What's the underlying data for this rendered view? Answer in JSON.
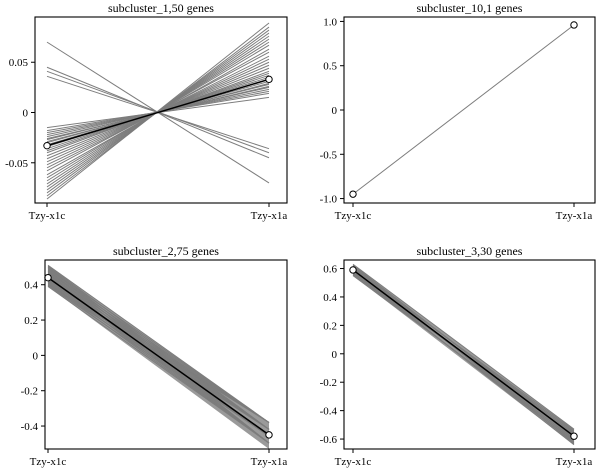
{
  "chart_data": [
    {
      "type": "line",
      "title": "subcluster_1,50 genes",
      "categories": [
        "Tzy-x1c",
        "Tzy-x1a"
      ],
      "ylim": [
        -0.09,
        0.095
      ],
      "yticks": [
        -0.05,
        0,
        0.05
      ],
      "ytick_labels": [
        "-0.05",
        "0",
        "0.05"
      ],
      "gene_lines": [
        {
          "start": 0.07,
          "end": -0.07
        },
        {
          "start": 0.045,
          "end": -0.045
        },
        {
          "start": 0.041,
          "end": -0.04
        },
        {
          "start": 0.036,
          "end": -0.036
        },
        {
          "start": -0.015,
          "end": 0.015
        },
        {
          "start": -0.018,
          "end": 0.019
        },
        {
          "start": -0.02,
          "end": 0.021
        },
        {
          "start": -0.022,
          "end": 0.023
        },
        {
          "start": -0.024,
          "end": 0.025
        },
        {
          "start": -0.026,
          "end": 0.026
        },
        {
          "start": -0.027,
          "end": 0.028
        },
        {
          "start": -0.029,
          "end": 0.029
        },
        {
          "start": -0.03,
          "end": 0.031
        },
        {
          "start": -0.032,
          "end": 0.033
        },
        {
          "start": -0.034,
          "end": 0.035
        },
        {
          "start": -0.036,
          "end": 0.037
        },
        {
          "start": -0.038,
          "end": 0.039
        },
        {
          "start": -0.04,
          "end": 0.041
        },
        {
          "start": -0.043,
          "end": 0.044
        },
        {
          "start": -0.046,
          "end": 0.047
        },
        {
          "start": -0.049,
          "end": 0.05
        },
        {
          "start": -0.052,
          "end": 0.053
        },
        {
          "start": -0.055,
          "end": 0.056
        },
        {
          "start": -0.058,
          "end": 0.06
        },
        {
          "start": -0.062,
          "end": 0.063
        },
        {
          "start": -0.065,
          "end": 0.067
        },
        {
          "start": -0.068,
          "end": 0.07
        },
        {
          "start": -0.071,
          "end": 0.073
        },
        {
          "start": -0.074,
          "end": 0.076
        },
        {
          "start": -0.077,
          "end": 0.079
        },
        {
          "start": -0.08,
          "end": 0.082
        },
        {
          "start": -0.083,
          "end": 0.085
        },
        {
          "start": -0.086,
          "end": 0.089
        }
      ],
      "mean_line": {
        "start": -0.033,
        "end": 0.033
      }
    },
    {
      "type": "line",
      "title": "subcluster_10,1 genes",
      "categories": [
        "Tzy-x1c",
        "Tzy-x1a"
      ],
      "ylim": [
        -1.05,
        1.05
      ],
      "yticks": [
        -1.0,
        -0.5,
        0,
        0.5,
        1.0
      ],
      "ytick_labels": [
        "-1.0",
        "-0.5",
        "0",
        "0.5",
        "1.0"
      ],
      "gene_lines": [
        {
          "start": -0.95,
          "end": 0.96
        }
      ],
      "mean_line": {
        "start": -0.95,
        "end": 0.96
      }
    },
    {
      "type": "line",
      "title": "subcluster_2,75 genes",
      "categories": [
        "Tzy-x1c",
        "Tzy-x1a"
      ],
      "ylim": [
        -0.53,
        0.54
      ],
      "yticks": [
        -0.4,
        -0.2,
        0,
        0.2,
        0.4
      ],
      "ytick_labels": [
        "-0.4",
        "-0.2",
        "0",
        "0.2",
        "0.4"
      ],
      "gene_band": {
        "top_start": 0.51,
        "bottom_start": 0.39,
        "top_end": -0.38,
        "bottom_end": -0.53,
        "count": 28
      },
      "mean_line": {
        "start": 0.44,
        "end": -0.45
      }
    },
    {
      "type": "line",
      "title": "subcluster_3,30 genes",
      "categories": [
        "Tzy-x1c",
        "Tzy-x1a"
      ],
      "ylim": [
        -0.67,
        0.66
      ],
      "yticks": [
        -0.6,
        -0.4,
        -0.2,
        0,
        0.2,
        0.4,
        0.6
      ],
      "ytick_labels": [
        "-0.6",
        "-0.4",
        "-0.2",
        "0",
        "0.2",
        "0.4",
        "0.6"
      ],
      "gene_band": {
        "top_start": 0.63,
        "bottom_start": 0.55,
        "top_end": -0.53,
        "bottom_end": -0.64,
        "count": 16
      },
      "mean_line": {
        "start": 0.59,
        "end": -0.58
      }
    }
  ]
}
